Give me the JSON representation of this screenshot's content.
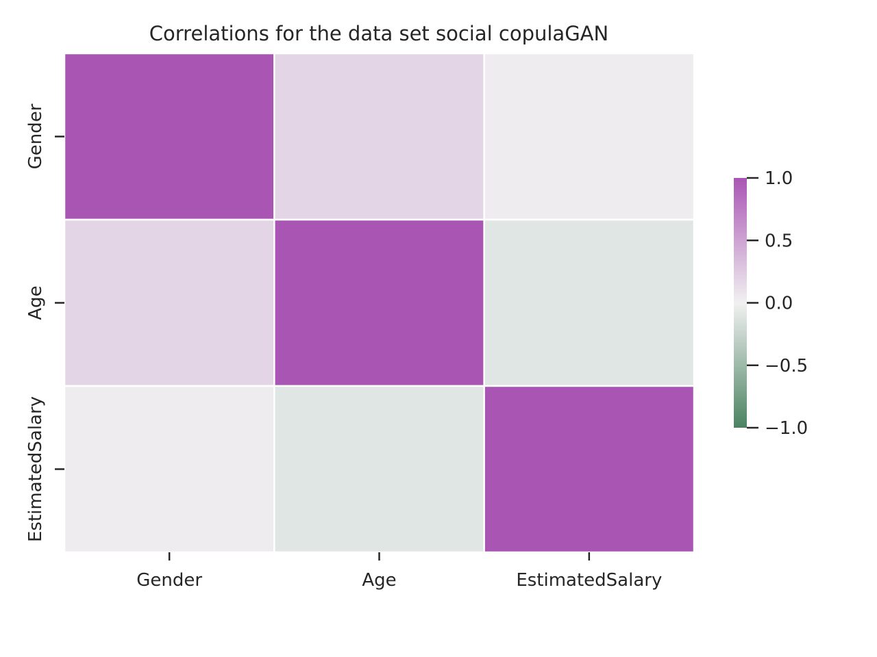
{
  "chart_data": {
    "type": "heatmap",
    "title": "Correlations for the data set social copulaGAN",
    "x_categories": [
      "Gender",
      "Age",
      "EstimatedSalary"
    ],
    "y_categories": [
      "Gender",
      "Age",
      "EstimatedSalary"
    ],
    "matrix": [
      [
        1.0,
        0.18,
        0.03
      ],
      [
        0.18,
        1.0,
        -0.1
      ],
      [
        0.03,
        -0.1,
        1.0
      ]
    ],
    "value_range": [
      -1.0,
      1.0
    ],
    "colorbar": {
      "ticks": [
        1.0,
        0.5,
        0.0,
        -0.5,
        -1.0
      ],
      "tick_labels": [
        "1.0",
        "0.5",
        "0.0",
        "−0.5",
        "−1.0"
      ],
      "placement": "right"
    },
    "colormap": {
      "negative_end": "#4a8260",
      "center": "#f1f1f1",
      "positive_end": "#a955b4"
    },
    "grid_line_color": "#ffffff"
  }
}
